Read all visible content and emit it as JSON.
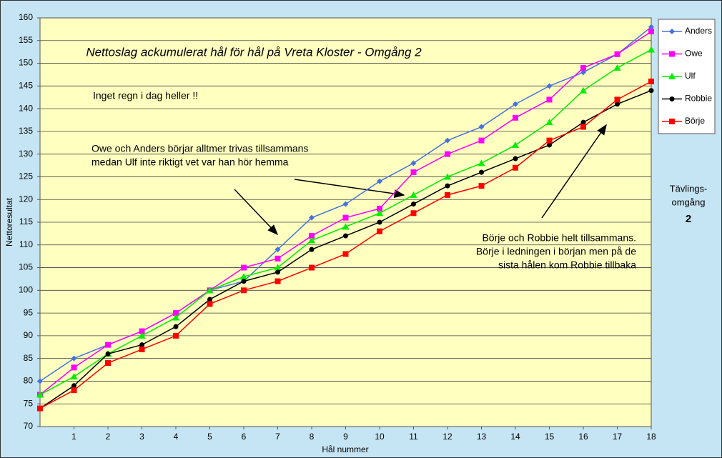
{
  "chart_data": {
    "type": "line",
    "title": "Nettoslag ackumulerat hål för hål på Vreta Kloster - Omgång 2",
    "x_label": "Hål nummer",
    "y_label": "Nettoresultat",
    "x": [
      0,
      1,
      2,
      3,
      4,
      5,
      6,
      7,
      8,
      9,
      10,
      11,
      12,
      13,
      14,
      15,
      16,
      17,
      18
    ],
    "xlim": [
      0,
      18
    ],
    "xticks": [
      1,
      2,
      3,
      4,
      5,
      6,
      7,
      8,
      9,
      10,
      11,
      12,
      13,
      14,
      15,
      16,
      17,
      18
    ],
    "ylim": [
      70,
      160
    ],
    "yticks": [
      70,
      75,
      80,
      85,
      90,
      95,
      100,
      105,
      110,
      115,
      120,
      125,
      130,
      135,
      140,
      145,
      150,
      155,
      160
    ],
    "grid": true,
    "legend": "right",
    "series": [
      {
        "name": "Anders",
        "color": "#4472e0",
        "marker": "diamond",
        "values": [
          80,
          85,
          88,
          91,
          95,
          100,
          102,
          109,
          116,
          119,
          124,
          128,
          133,
          136,
          141,
          145,
          148,
          152,
          158
        ]
      },
      {
        "name": "Owe",
        "color": "#ff00ff",
        "marker": "square",
        "values": [
          77,
          83,
          88,
          91,
          95,
          100,
          105,
          107,
          112,
          116,
          118,
          126,
          130,
          133,
          138,
          142,
          149,
          152,
          157
        ]
      },
      {
        "name": "Ulf",
        "color": "#00ee00",
        "marker": "triangle",
        "values": [
          77,
          81,
          86,
          90,
          94,
          100,
          103,
          105,
          111,
          114,
          117,
          121,
          125,
          128,
          132,
          137,
          144,
          149,
          153
        ]
      },
      {
        "name": "Robbie",
        "color": "#000000",
        "marker": "circle",
        "values": [
          74,
          79,
          86,
          88,
          92,
          98,
          102,
          104,
          109,
          112,
          115,
          119,
          123,
          126,
          129,
          132,
          137,
          141,
          144
        ]
      },
      {
        "name": "Börje",
        "color": "#ff0000",
        "marker": "square",
        "values": [
          74,
          78,
          84,
          87,
          90,
          97,
          100,
          102,
          105,
          108,
          113,
          117,
          121,
          123,
          127,
          133,
          136,
          142,
          146
        ]
      }
    ],
    "annotations": [
      {
        "lines": [
          "Inget regn i dag heller !!"
        ]
      },
      {
        "lines": [
          "Owe och Anders börjar alltmer trivas tillsammans",
          "medan Ulf inte riktigt vet var han hör hemma"
        ]
      },
      {
        "lines": [
          "Börje och Robbie helt tillsammans.",
          "Börje i ledningen i början men på de",
          "sista hålen kom Robbie tillbaka"
        ]
      }
    ],
    "side_note": {
      "lines": [
        "Tävlings-",
        "omgång"
      ],
      "number": "2"
    }
  }
}
